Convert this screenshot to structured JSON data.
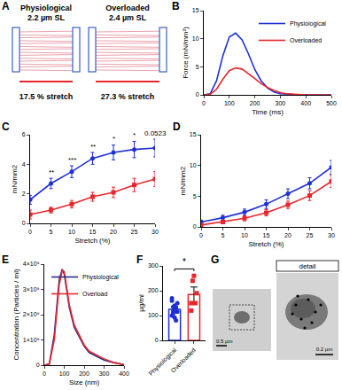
{
  "diagram": {
    "panel_label": "A",
    "items": [
      {
        "title": "Physiological",
        "sarcomere_length": "2.2 µm SL",
        "stretch": "17.5 % stretch"
      },
      {
        "title": "Overloaded",
        "sarcomere_length": "2.4 µm SL",
        "stretch": "27.3 % stretch"
      }
    ]
  },
  "images": {
    "panel_label": "G",
    "detail_label": "detail",
    "scale_bars": [
      "0.5 µm",
      "0.2 µm"
    ]
  },
  "chart_data": [
    {
      "panel_label": "B",
      "type": "line",
      "x_label": "Time (ms)",
      "y_label": "Force (mN/mm²)",
      "x": [
        0,
        25,
        50,
        75,
        100,
        125,
        150,
        175,
        200,
        225,
        250,
        275,
        300,
        325,
        350,
        375,
        400,
        425,
        450,
        475,
        500
      ],
      "xlim": [
        0,
        500
      ],
      "xticks": [
        0,
        100,
        200,
        300,
        400,
        500
      ],
      "ylim": [
        0,
        15
      ],
      "yticks": [
        0,
        5,
        10,
        15
      ],
      "legend": "top right",
      "series": [
        {
          "name": "Physiological",
          "color": "#1f2fd8",
          "values": [
            0,
            0.2,
            2.5,
            7,
            10.3,
            11,
            9.8,
            7.3,
            4.5,
            2.5,
            1.2,
            0.5,
            0.2,
            0.1,
            0,
            0,
            0,
            0,
            0,
            0,
            0
          ]
        },
        {
          "name": "Overloaded",
          "color": "#e8262c",
          "values": [
            0,
            0.1,
            1,
            2.8,
            4.3,
            4.8,
            4.6,
            3.8,
            2.9,
            2,
            1.3,
            0.8,
            0.4,
            0.2,
            0.1,
            0,
            0,
            0,
            0,
            0,
            0
          ]
        }
      ]
    },
    {
      "panel_label": "C",
      "type": "line",
      "x_label": "Stretch (%)",
      "y_label": "mN/mm2",
      "x": [
        0,
        5,
        10,
        15,
        20,
        25,
        30
      ],
      "xlim": [
        0,
        30
      ],
      "xticks": [
        0,
        5,
        10,
        15,
        20,
        25,
        30
      ],
      "ylim": [
        0,
        6
      ],
      "yticks": [
        0,
        2,
        4,
        6
      ],
      "series": [
        {
          "color": "#1f2fd8",
          "marker": "circle",
          "values": [
            1.6,
            2.7,
            3.5,
            4.4,
            4.8,
            5.0,
            5.1
          ],
          "errors": [
            0.3,
            0.35,
            0.4,
            0.4,
            0.5,
            0.55,
            0.6
          ]
        },
        {
          "color": "#e8262c",
          "marker": "square",
          "values": [
            0.6,
            0.9,
            1.3,
            1.8,
            2.1,
            2.6,
            3.0
          ],
          "errors": [
            0.3,
            0.2,
            0.25,
            0.3,
            0.35,
            0.45,
            0.5
          ]
        }
      ],
      "annotations": [
        {
          "x": 5,
          "text": "**"
        },
        {
          "x": 10,
          "text": "***"
        },
        {
          "x": 15,
          "text": "**"
        },
        {
          "x": 20,
          "text": "*"
        },
        {
          "x": 25,
          "text": "*"
        },
        {
          "x": 30,
          "text": "0.0523"
        }
      ]
    },
    {
      "panel_label": "D",
      "type": "line",
      "x_label": "Stretch (%)",
      "y_label": "mN/mm2",
      "x": [
        0,
        5,
        10,
        15,
        20,
        25,
        30
      ],
      "xlim": [
        0,
        30
      ],
      "xticks": [
        0,
        5,
        10,
        15,
        20,
        25,
        30
      ],
      "ylim": [
        0,
        15
      ],
      "yticks": [
        0,
        5,
        10,
        15
      ],
      "series": [
        {
          "color": "#1f2fd8",
          "marker": "circle",
          "values": [
            0.8,
            1.5,
            2.4,
            3.7,
            5.4,
            7.1,
            9.7
          ],
          "errors": [
            0.3,
            0.4,
            0.5,
            0.7,
            0.8,
            0.9,
            1.1
          ]
        },
        {
          "color": "#e8262c",
          "marker": "square",
          "values": [
            0.3,
            0.8,
            1.4,
            2.3,
            3.6,
            5.1,
            7.4
          ],
          "errors": [
            0.2,
            0.3,
            0.4,
            0.5,
            0.6,
            0.8,
            1.0
          ]
        }
      ]
    },
    {
      "panel_label": "E",
      "type": "line",
      "x_label": "Size (nm)",
      "y_label": "Concentration (Particles / ml)",
      "x": [
        0,
        25,
        50,
        60,
        75,
        90,
        100,
        110,
        125,
        150,
        175,
        200,
        225,
        250,
        300,
        350,
        400
      ],
      "xlim": [
        0,
        400
      ],
      "xticks": [
        0,
        100,
        200,
        300,
        400
      ],
      "ylim": [
        0,
        4000000000
      ],
      "yticks": [
        0,
        {
          "value": 1000000000,
          "label": "1×10⁹"
        },
        {
          "value": 2000000000,
          "label": "2×10⁹"
        },
        {
          "value": 3000000000,
          "label": "3×10⁹"
        },
        {
          "value": 4000000000,
          "label": "4×10⁹"
        }
      ],
      "legend": "top right",
      "series": [
        {
          "name": "Physiological",
          "color": "#2b2b8c",
          "values": [
            0,
            50000000,
            1200000000,
            2200000000,
            3400000000,
            3800000000,
            3600000000,
            3100000000,
            2300000000,
            1500000000,
            1100000000,
            750000000,
            500000000,
            400000000,
            200000000,
            100000000,
            20000000
          ]
        },
        {
          "name": "Overload",
          "color": "#e8262c",
          "values": [
            0,
            40000000,
            1000000000,
            2000000000,
            3200000000,
            3750000000,
            3700000000,
            3200000000,
            2400000000,
            1600000000,
            1200000000,
            800000000,
            550000000,
            450000000,
            250000000,
            100000000,
            20000000
          ]
        }
      ]
    },
    {
      "panel_label": "F",
      "type": "bar",
      "y_label": "µg/ml",
      "categories": [
        "Physiological",
        "Overloaded"
      ],
      "values": [
        125,
        185
      ],
      "errors": [
        12,
        30
      ],
      "colors": [
        "#1f2fd8",
        "#e8262c"
      ],
      "ylim": [
        0,
        300
      ],
      "yticks": [
        0,
        100,
        200,
        300
      ],
      "points": [
        {
          "marker": "circle",
          "values": [
            100,
            110,
            92,
            130,
            150,
            160,
            118,
            140,
            80,
            115,
            170,
            135
          ]
        },
        {
          "marker": "square",
          "values": [
            120,
            240,
            260,
            150,
            190,
            150
          ]
        }
      ],
      "significance": "*"
    }
  ]
}
